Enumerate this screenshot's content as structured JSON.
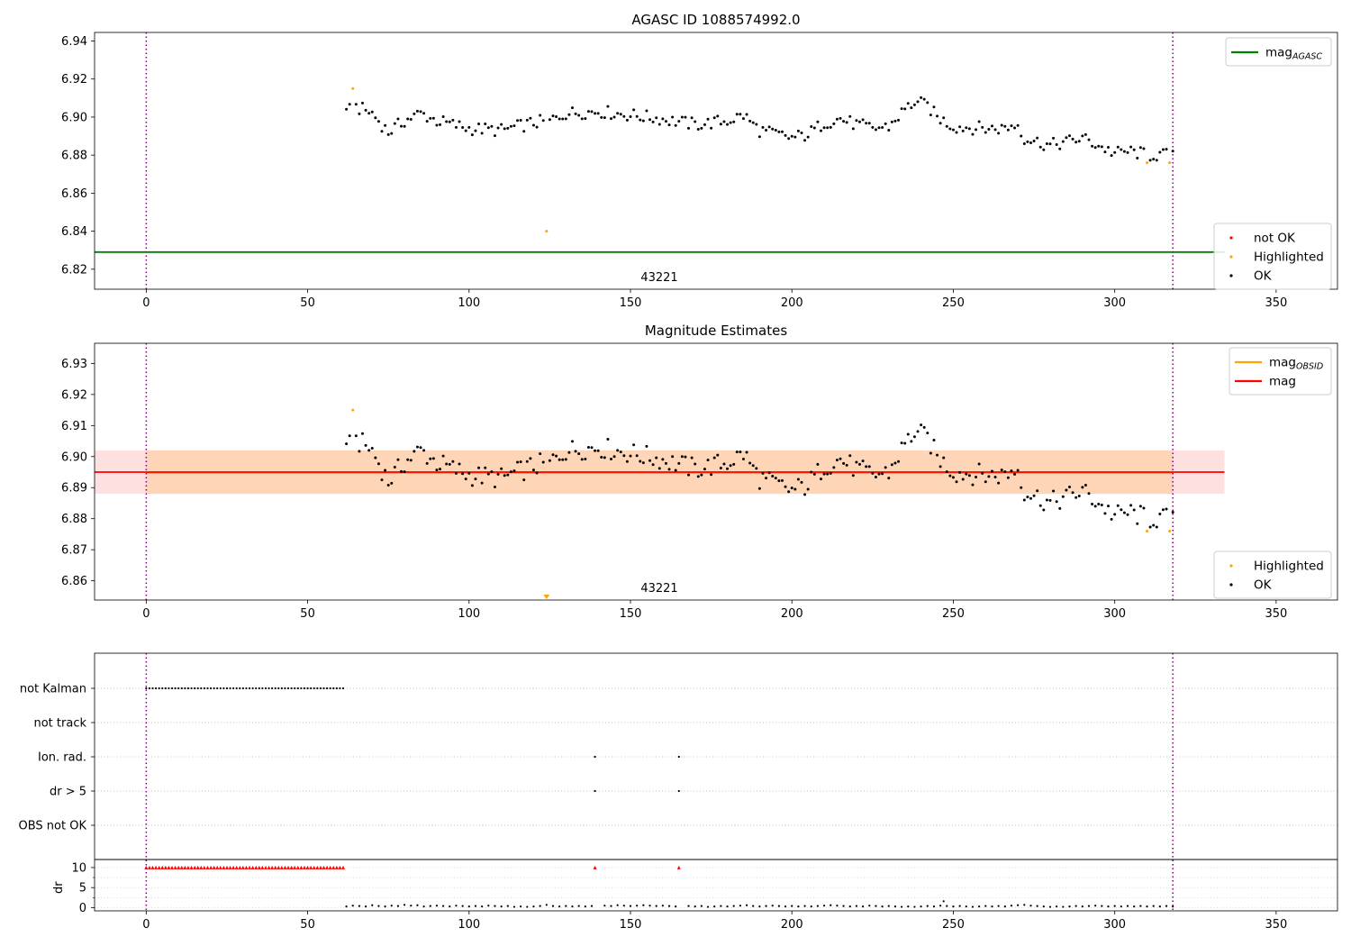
{
  "chart_data": [
    {
      "type": "scatter",
      "title": "AGASC ID 1088574992.0",
      "xlim": [
        -16,
        369
      ],
      "ylim": [
        6.8095,
        6.9445
      ],
      "xticks": [
        "0",
        "50",
        "100",
        "150",
        "200",
        "250",
        "300",
        "350"
      ],
      "xtick_values": [
        0,
        50,
        100,
        150,
        200,
        250,
        300,
        350
      ],
      "yticks": [
        "6.82",
        "6.84",
        "6.86",
        "6.88",
        "6.90",
        "6.92",
        "6.94"
      ],
      "ytick_values": [
        6.82,
        6.84,
        6.86,
        6.88,
        6.9,
        6.92,
        6.94
      ],
      "obsid_label": "43221",
      "obsid_label_x": 155,
      "obs_boundaries": [
        0,
        318
      ],
      "reference_line": {
        "name": "mag",
        "name_sub": "AGASC",
        "y": 6.829,
        "color": "#008000"
      },
      "highlighted_points": [
        [
          64,
          6.915
        ],
        [
          124,
          6.84
        ],
        [
          310,
          6.876
        ],
        [
          317,
          6.876
        ]
      ],
      "series_colors": {
        "ok": "#000000",
        "highlighted": "#FFA500",
        "not_ok": "#FF0000"
      },
      "legend_top": {
        "position": "upper right",
        "entries": [
          {
            "label": "mag",
            "sub": "AGASC",
            "color": "#008000"
          }
        ]
      },
      "legend_bottom": {
        "position": "lower right",
        "entries": [
          {
            "label": "not OK",
            "color": "#FF0000"
          },
          {
            "label": "Highlighted",
            "color": "#FFA500"
          },
          {
            "label": "OK",
            "color": "#000000"
          }
        ]
      }
    },
    {
      "type": "scatter",
      "title": "Magnitude Estimates",
      "xlim": [
        -16,
        369
      ],
      "ylim": [
        6.8538,
        6.9365
      ],
      "xticks": [
        "0",
        "50",
        "100",
        "150",
        "200",
        "250",
        "300",
        "350"
      ],
      "xtick_values": [
        0,
        50,
        100,
        150,
        200,
        250,
        300,
        350
      ],
      "yticks": [
        "6.86",
        "6.87",
        "6.88",
        "6.89",
        "6.90",
        "6.91",
        "6.92",
        "6.93"
      ],
      "ytick_values": [
        6.86,
        6.87,
        6.88,
        6.89,
        6.9,
        6.91,
        6.92,
        6.93
      ],
      "obsid_label": "43221",
      "obsid_label_x": 155,
      "obs_boundaries": [
        0,
        318
      ],
      "mag": 6.895,
      "mag_band": [
        6.888,
        6.902
      ],
      "mag_obsid": 6.8948,
      "band_xrange": [
        -16,
        334
      ],
      "highlighted_points": [
        [
          64,
          6.915
        ],
        [
          310,
          6.876
        ],
        [
          317,
          6.876
        ]
      ],
      "offscale_marker": {
        "x": 124,
        "color": "#FFA500"
      },
      "legend_top": {
        "position": "upper right",
        "entries": [
          {
            "label": "mag",
            "sub": "OBSID",
            "color": "#FFA500"
          },
          {
            "label": "mag",
            "sub": "",
            "color": "#FF0000"
          }
        ]
      },
      "legend_bottom": {
        "position": "lower right",
        "entries": [
          {
            "label": "Highlighted",
            "color": "#FFA500"
          },
          {
            "label": "OK",
            "color": "#000000"
          }
        ]
      }
    },
    {
      "type": "scatter",
      "title": "",
      "ylabel": "dr",
      "xlim": [
        -16,
        369
      ],
      "xticks": [
        "0",
        "50",
        "100",
        "150",
        "200",
        "250",
        "300",
        "350"
      ],
      "xtick_values": [
        0,
        50,
        100,
        150,
        200,
        250,
        300,
        350
      ],
      "flag_rows": [
        "not Kalman",
        "not track",
        "Ion. rad.",
        "dr > 5",
        "OBS not OK"
      ],
      "flags": {
        "not Kalman": {
          "x_from": 0,
          "x_to": 61
        },
        "not track": {
          "x": []
        },
        "Ion. rad.": {
          "x": [
            139,
            165
          ]
        },
        "dr > 5": {
          "x": [
            139,
            165
          ]
        },
        "OBS not OK": {
          "x": []
        }
      },
      "dr_ylim": [
        -0.8,
        12
      ],
      "dr_yticks": [
        "0",
        "5",
        "10"
      ],
      "dr_ytick_values": [
        0,
        5,
        10
      ],
      "dr_clip": 10,
      "dr_clipped_x": {
        "x_from": 0,
        "x_to": 61,
        "extra": [
          139,
          165
        ]
      },
      "dr_points": [
        [
          62,
          0.3
        ],
        [
          64,
          0.5
        ],
        [
          66,
          0.4
        ],
        [
          68,
          0.3
        ],
        [
          70,
          0.6
        ],
        [
          72,
          0.4
        ],
        [
          74,
          0.3
        ],
        [
          76,
          0.5
        ],
        [
          78,
          0.4
        ],
        [
          80,
          0.7
        ],
        [
          82,
          0.5
        ],
        [
          84,
          0.6
        ],
        [
          86,
          0.3
        ],
        [
          88,
          0.4
        ],
        [
          90,
          0.5
        ],
        [
          92,
          0.4
        ],
        [
          94,
          0.3
        ],
        [
          96,
          0.5
        ],
        [
          98,
          0.4
        ],
        [
          100,
          0.3
        ],
        [
          102,
          0.4
        ],
        [
          104,
          0.3
        ],
        [
          106,
          0.5
        ],
        [
          108,
          0.4
        ],
        [
          110,
          0.3
        ],
        [
          112,
          0.4
        ],
        [
          114,
          0.2
        ],
        [
          116,
          0.3
        ],
        [
          118,
          0.2
        ],
        [
          120,
          0.3
        ],
        [
          122,
          0.4
        ],
        [
          124,
          0.7
        ],
        [
          126,
          0.4
        ],
        [
          128,
          0.3
        ],
        [
          130,
          0.4
        ],
        [
          132,
          0.3
        ],
        [
          134,
          0.4
        ],
        [
          136,
          0.3
        ],
        [
          138,
          0.4
        ],
        [
          142,
          0.5
        ],
        [
          144,
          0.4
        ],
        [
          146,
          0.6
        ],
        [
          148,
          0.5
        ],
        [
          150,
          0.4
        ],
        [
          152,
          0.5
        ],
        [
          154,
          0.6
        ],
        [
          156,
          0.5
        ],
        [
          158,
          0.4
        ],
        [
          160,
          0.5
        ],
        [
          162,
          0.4
        ],
        [
          164,
          0.3
        ],
        [
          168,
          0.4
        ],
        [
          170,
          0.3
        ],
        [
          172,
          0.4
        ],
        [
          174,
          0.2
        ],
        [
          176,
          0.3
        ],
        [
          178,
          0.4
        ],
        [
          180,
          0.3
        ],
        [
          182,
          0.4
        ],
        [
          184,
          0.5
        ],
        [
          186,
          0.6
        ],
        [
          188,
          0.4
        ],
        [
          190,
          0.3
        ],
        [
          192,
          0.4
        ],
        [
          194,
          0.5
        ],
        [
          196,
          0.4
        ],
        [
          198,
          0.3
        ],
        [
          200,
          0.4
        ],
        [
          202,
          0.3
        ],
        [
          204,
          0.4
        ],
        [
          206,
          0.3
        ],
        [
          208,
          0.4
        ],
        [
          210,
          0.5
        ],
        [
          212,
          0.6
        ],
        [
          214,
          0.5
        ],
        [
          216,
          0.4
        ],
        [
          218,
          0.3
        ],
        [
          220,
          0.4
        ],
        [
          222,
          0.3
        ],
        [
          224,
          0.5
        ],
        [
          226,
          0.4
        ],
        [
          228,
          0.3
        ],
        [
          230,
          0.4
        ],
        [
          232,
          0.3
        ],
        [
          234,
          0.2
        ],
        [
          236,
          0.3
        ],
        [
          238,
          0.2
        ],
        [
          240,
          0.3
        ],
        [
          242,
          0.4
        ],
        [
          244,
          0.3
        ],
        [
          246,
          0.5
        ],
        [
          247,
          1.6
        ],
        [
          248,
          0.4
        ],
        [
          250,
          0.3
        ],
        [
          252,
          0.4
        ],
        [
          254,
          0.3
        ],
        [
          256,
          0.2
        ],
        [
          258,
          0.3
        ],
        [
          260,
          0.4
        ],
        [
          262,
          0.3
        ],
        [
          264,
          0.4
        ],
        [
          266,
          0.3
        ],
        [
          268,
          0.5
        ],
        [
          270,
          0.6
        ],
        [
          272,
          0.7
        ],
        [
          274,
          0.5
        ],
        [
          276,
          0.4
        ],
        [
          278,
          0.3
        ],
        [
          280,
          0.2
        ],
        [
          282,
          0.3
        ],
        [
          284,
          0.2
        ],
        [
          286,
          0.3
        ],
        [
          288,
          0.4
        ],
        [
          290,
          0.3
        ],
        [
          292,
          0.4
        ],
        [
          294,
          0.5
        ],
        [
          296,
          0.4
        ],
        [
          298,
          0.3
        ],
        [
          300,
          0.4
        ],
        [
          302,
          0.3
        ],
        [
          304,
          0.4
        ],
        [
          306,
          0.3
        ],
        [
          308,
          0.4
        ],
        [
          310,
          0.3
        ],
        [
          312,
          0.4
        ],
        [
          314,
          0.3
        ],
        [
          316,
          0.4
        ],
        [
          318,
          0.3
        ]
      ]
    }
  ]
}
